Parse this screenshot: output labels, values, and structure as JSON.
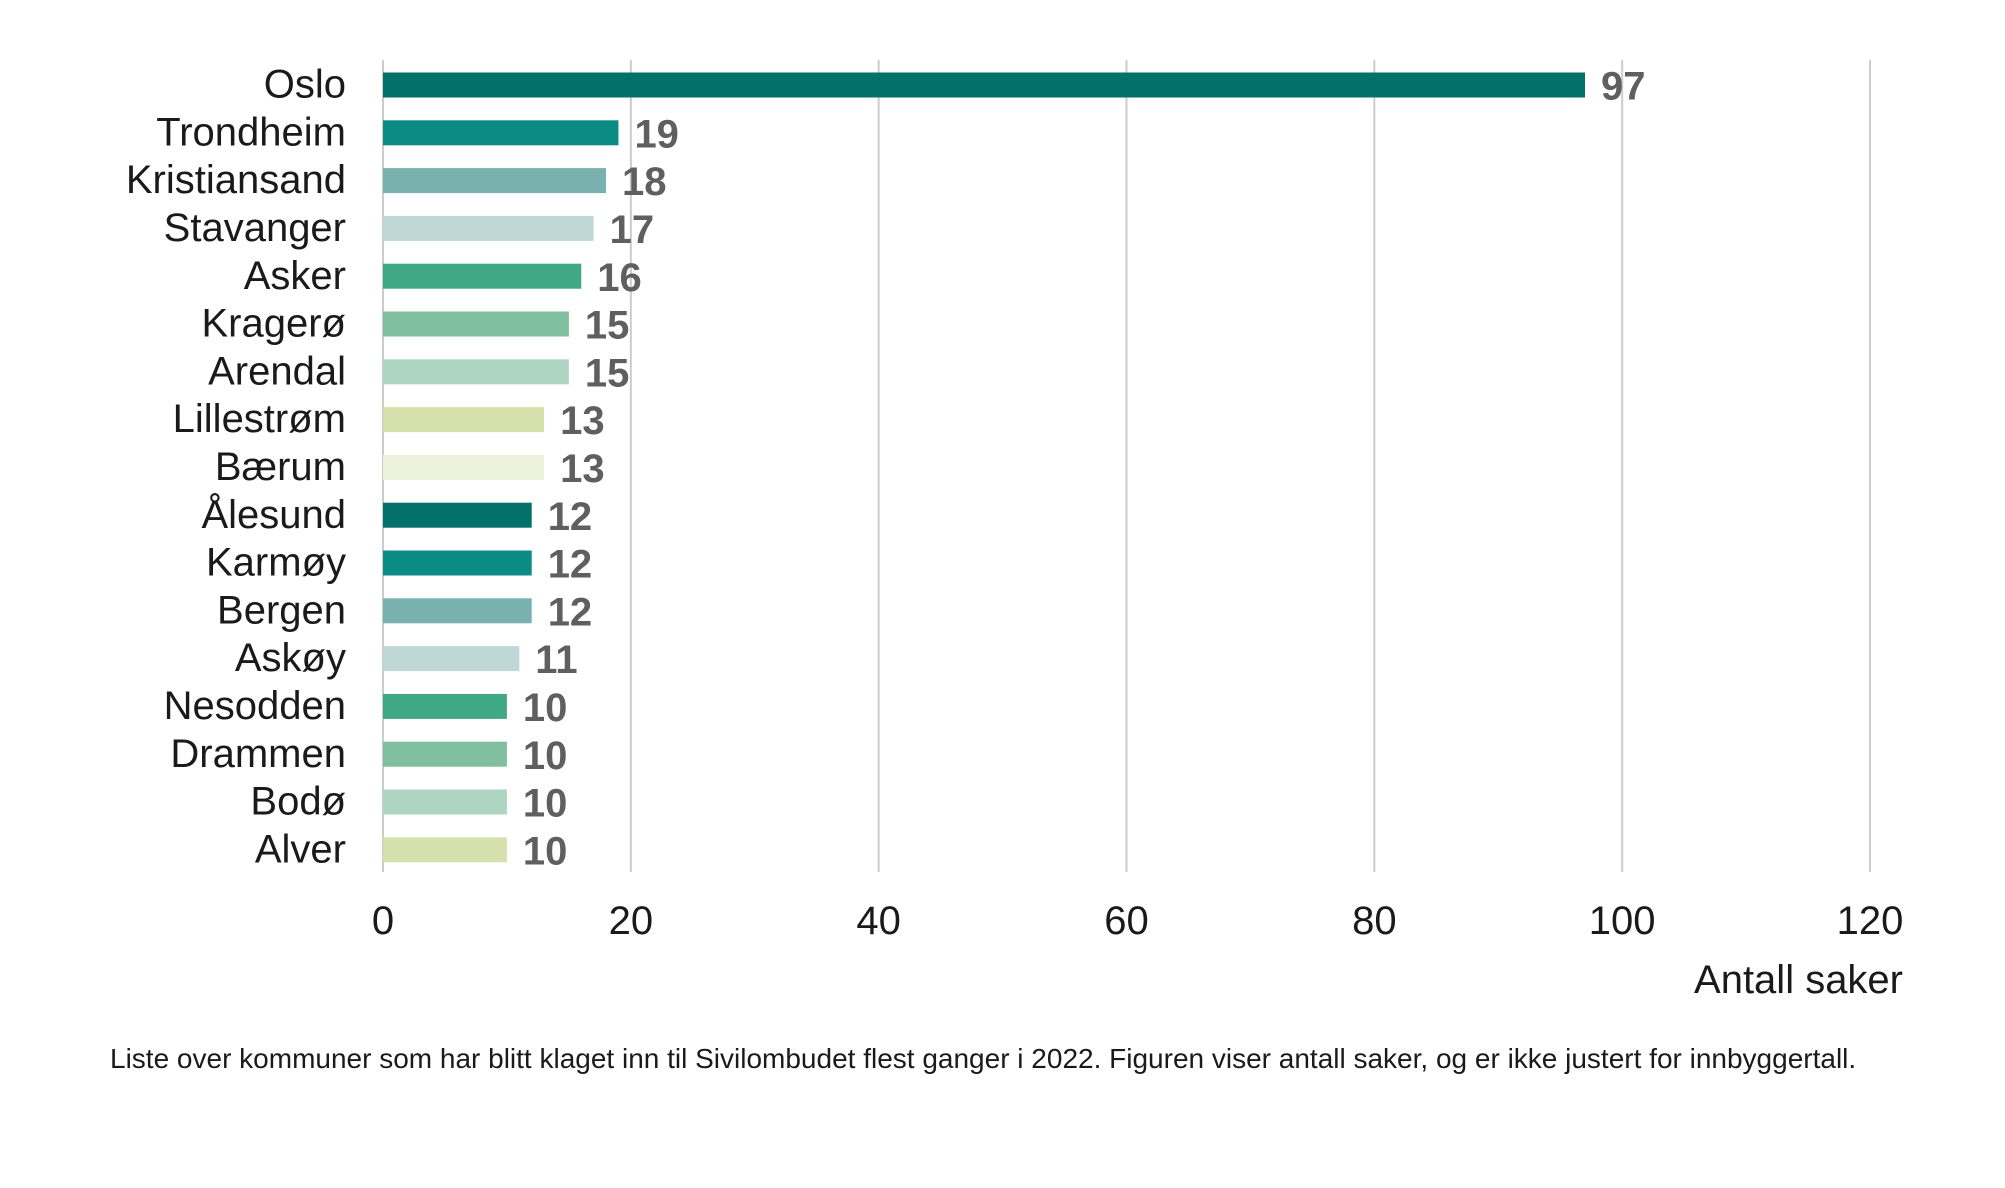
{
  "chart_data": {
    "type": "bar",
    "orientation": "horizontal",
    "categories": [
      "Oslo",
      "Trondheim",
      "Kristiansand",
      "Stavanger",
      "Asker",
      "Kragerø",
      "Arendal",
      "Lillestrøm",
      "Bærum",
      "Ålesund",
      "Karmøy",
      "Bergen",
      "Askøy",
      "Nesodden",
      "Drammen",
      "Bodø",
      "Alver"
    ],
    "values": [
      97,
      19,
      18,
      17,
      16,
      15,
      15,
      13,
      13,
      12,
      12,
      12,
      11,
      10,
      10,
      10,
      10
    ],
    "colors": [
      "#04706a",
      "#0a8c85",
      "#79b1ae",
      "#bfd8d7",
      "#40a885",
      "#7fbf9f",
      "#aed5c2",
      "#d5e0ad",
      "#ebf1db",
      "#04706a",
      "#0a8c85",
      "#79b1ae",
      "#bfd8d7",
      "#40a885",
      "#7fbf9f",
      "#aed5c2",
      "#d5e0ad"
    ],
    "x_ticks": [
      0,
      20,
      40,
      60,
      80,
      100,
      120
    ],
    "xlim": [
      0,
      120
    ],
    "xlabel": "Antall saker",
    "ylabel": "",
    "title": "",
    "grid": true
  },
  "caption": "Liste over kommuner som har blitt klaget inn til Sivilombudet flest ganger i 2022. Figuren viser antall saker, og er ikke justert for innbyggertall."
}
